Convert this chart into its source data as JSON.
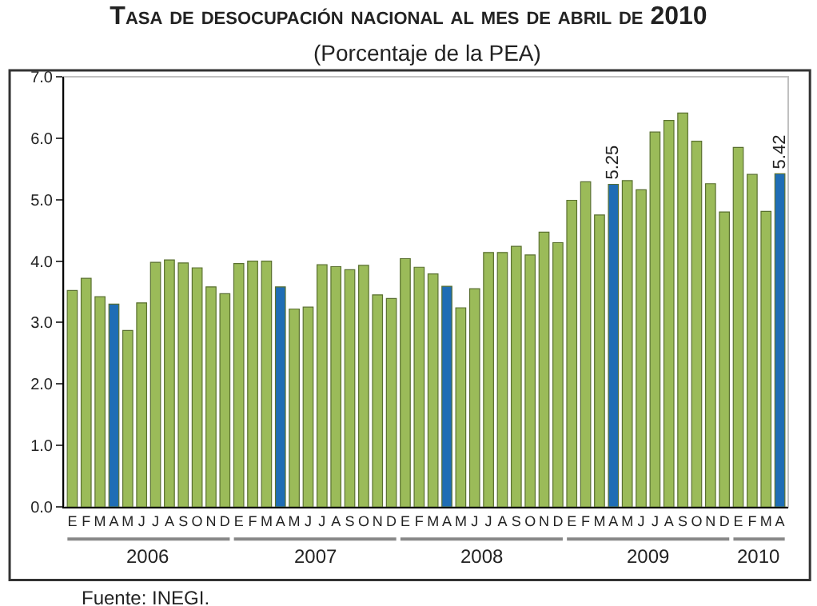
{
  "chart_data": {
    "type": "bar",
    "title": "Tasa de desocupación nacional al mes de abril de 2010",
    "subtitle": "(Porcentaje de la PEA)",
    "categories": [
      "E",
      "F",
      "M",
      "A",
      "M",
      "J",
      "J",
      "A",
      "S",
      "O",
      "N",
      "D",
      "E",
      "F",
      "M",
      "A",
      "M",
      "J",
      "J",
      "A",
      "S",
      "O",
      "N",
      "D",
      "E",
      "F",
      "M",
      "A",
      "M",
      "J",
      "J",
      "A",
      "S",
      "O",
      "N",
      "D",
      "E",
      "F",
      "M",
      "A",
      "M",
      "J",
      "J",
      "A",
      "S",
      "O",
      "N",
      "D",
      "E",
      "F",
      "M",
      "A"
    ],
    "values": [
      3.52,
      3.72,
      3.42,
      3.3,
      2.87,
      3.32,
      3.98,
      4.02,
      3.97,
      3.89,
      3.58,
      3.47,
      3.96,
      4.0,
      4.0,
      3.58,
      3.22,
      3.25,
      3.94,
      3.91,
      3.86,
      3.93,
      3.45,
      3.39,
      4.04,
      3.9,
      3.79,
      3.59,
      3.24,
      3.55,
      4.14,
      4.14,
      4.24,
      4.1,
      4.47,
      4.3,
      4.99,
      5.29,
      4.75,
      5.25,
      5.31,
      5.16,
      6.1,
      6.29,
      6.41,
      5.95,
      5.26,
      4.8,
      5.85,
      5.41,
      4.81,
      5.42
    ],
    "colors": [
      "#9bbb59",
      "#9bbb59",
      "#9bbb59",
      "#1f6db5",
      "#9bbb59",
      "#9bbb59",
      "#9bbb59",
      "#9bbb59",
      "#9bbb59",
      "#9bbb59",
      "#9bbb59",
      "#9bbb59",
      "#9bbb59",
      "#9bbb59",
      "#9bbb59",
      "#1f6db5",
      "#9bbb59",
      "#9bbb59",
      "#9bbb59",
      "#9bbb59",
      "#9bbb59",
      "#9bbb59",
      "#9bbb59",
      "#9bbb59",
      "#9bbb59",
      "#9bbb59",
      "#9bbb59",
      "#1f6db5",
      "#9bbb59",
      "#9bbb59",
      "#9bbb59",
      "#9bbb59",
      "#9bbb59",
      "#9bbb59",
      "#9bbb59",
      "#9bbb59",
      "#9bbb59",
      "#9bbb59",
      "#9bbb59",
      "#1f6db5",
      "#9bbb59",
      "#9bbb59",
      "#9bbb59",
      "#9bbb59",
      "#9bbb59",
      "#9bbb59",
      "#9bbb59",
      "#9bbb59",
      "#9bbb59",
      "#9bbb59",
      "#9bbb59",
      "#1f6db5"
    ],
    "value_labels": [
      null,
      null,
      null,
      null,
      null,
      null,
      null,
      null,
      null,
      null,
      null,
      null,
      null,
      null,
      null,
      null,
      null,
      null,
      null,
      null,
      null,
      null,
      null,
      null,
      null,
      null,
      null,
      null,
      null,
      null,
      null,
      null,
      null,
      null,
      null,
      null,
      null,
      null,
      null,
      "5.25",
      null,
      null,
      null,
      null,
      null,
      null,
      null,
      null,
      null,
      null,
      null,
      "5.42"
    ],
    "ylim": [
      0,
      7
    ],
    "yticks": [
      {
        "value": 0,
        "label": "0.0"
      },
      {
        "value": 1,
        "label": "1.0"
      },
      {
        "value": 2,
        "label": "2.0"
      },
      {
        "value": 3,
        "label": "3.0"
      },
      {
        "value": 4,
        "label": "4.0"
      },
      {
        "value": 5,
        "label": "5.0"
      },
      {
        "value": 6,
        "label": "6.0"
      },
      {
        "value": 7,
        "label": "7.0"
      }
    ],
    "grid": false,
    "legend": false,
    "annotations": [
      "2006",
      "2007",
      "2008",
      "2009",
      "2010",
      "Fuente: INEGI."
    ]
  }
}
